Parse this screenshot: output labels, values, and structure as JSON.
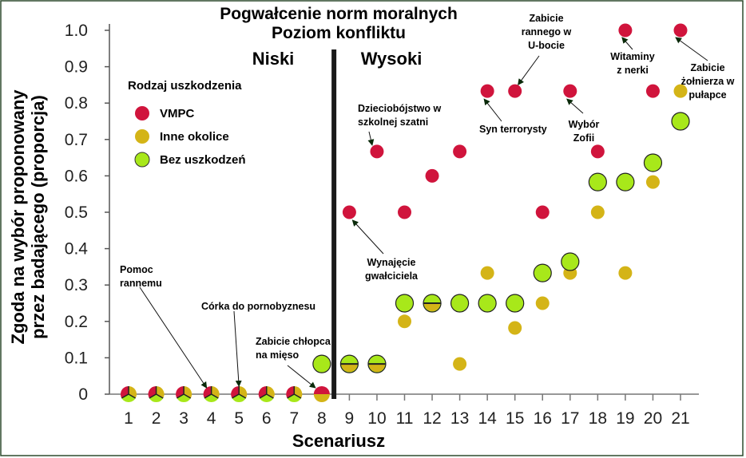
{
  "chart_data": {
    "type": "scatter",
    "title": [
      "Pogwałcenie norm moralnych",
      "Poziom konfliktu"
    ],
    "xlabel": "Scenariusz",
    "ylabel": [
      "Zgoda na wybór proponowany",
      "przez badającego (proporcja)"
    ],
    "x": [
      1,
      2,
      3,
      4,
      5,
      6,
      7,
      8,
      9,
      10,
      11,
      12,
      13,
      14,
      15,
      16,
      17,
      18,
      19,
      20,
      21
    ],
    "xlim": [
      0.5,
      21.8
    ],
    "ylim": [
      0,
      1.0
    ],
    "yticks": [
      "0",
      "0.1",
      "0.2",
      "0.3",
      "0.4",
      "0.5",
      "0.6",
      "0.7",
      "0.8",
      "0.9",
      "1.0"
    ],
    "grid": false,
    "regions": {
      "low": "Niski",
      "high": "Wysoki",
      "divider_after_x": 8.5
    },
    "legend": {
      "title": "Rodzaj uszkodzenia",
      "placement": "top-left",
      "entries": [
        "VMPC",
        "Inne okolice",
        "Bez uszkodzeń"
      ]
    },
    "series": [
      {
        "name": "VMPC",
        "color": "#d0143c",
        "values": [
          0,
          0,
          0,
          0,
          0,
          0,
          0,
          0,
          0.5,
          0.667,
          0.5,
          0.6,
          0.667,
          0.833,
          0.833,
          0.5,
          0.833,
          0.667,
          1.0,
          0.833,
          1.0
        ]
      },
      {
        "name": "Inne okolice",
        "color": "#d4b417",
        "values": [
          0,
          0,
          0,
          0,
          0,
          0,
          0,
          0,
          0.083,
          0.083,
          0.2,
          0.25,
          0.083,
          0.333,
          0.182,
          0.25,
          0.333,
          0.5,
          0.333,
          0.583,
          0.833
        ]
      },
      {
        "name": "Bez uszkodzeń",
        "color": "#a8e81a",
        "values": [
          0,
          0,
          0,
          0,
          0,
          0,
          0,
          0.083,
          0.083,
          0.083,
          0.25,
          0.25,
          0.25,
          0.25,
          0.25,
          0.333,
          0.364,
          0.583,
          0.583,
          0.636,
          0.75
        ]
      }
    ],
    "annotations": [
      {
        "text": [
          "Pomoc",
          "rannemu"
        ],
        "target_x": 4,
        "target_y": 0
      },
      {
        "text": [
          "Córka do pornobyznesu"
        ],
        "target_x": 5,
        "target_y": 0
      },
      {
        "text": [
          "Zabicie chłopca",
          "na mięso"
        ],
        "target_x": 8,
        "target_y": 0
      },
      {
        "text": [
          "Wynajęcie",
          "gwałciciela"
        ],
        "target_x": 9,
        "target_y": 0.5
      },
      {
        "text": [
          "Dzieciobójstwo w",
          "szkolnej szatni"
        ],
        "target_x": 10,
        "target_y": 0.667
      },
      {
        "text": [
          "Syn terrorysty"
        ],
        "target_x": 14,
        "target_y": 0.833
      },
      {
        "text": [
          "Zabicie",
          "rannego w",
          "U-bocie"
        ],
        "target_x": 15,
        "target_y": 0.833
      },
      {
        "text": [
          "Wybór",
          "Zofii"
        ],
        "target_x": 17,
        "target_y": 0.833
      },
      {
        "text": [
          "Witaminy",
          "z nerki"
        ],
        "target_x": 19,
        "target_y": 1.0
      },
      {
        "text": [
          "Zabicie",
          "żołnierza w",
          "pułapce"
        ],
        "target_x": 21,
        "target_y": 1.0
      }
    ]
  }
}
